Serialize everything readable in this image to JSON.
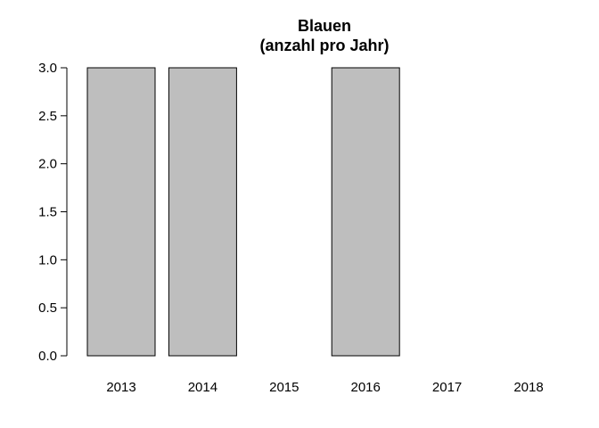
{
  "chart_data": {
    "type": "bar",
    "title_lines": [
      "Blauen",
      "(anzahl pro Jahr)"
    ],
    "xlabel": "",
    "ylabel": "",
    "categories": [
      "2013",
      "2014",
      "2015",
      "2016",
      "2017",
      "2018"
    ],
    "values": [
      3,
      3,
      0,
      3,
      0,
      0
    ],
    "ylim": [
      0,
      3
    ],
    "yticks": [
      0,
      0.5,
      1,
      1.5,
      2,
      2.5,
      3
    ],
    "ytick_labels": [
      "0.0",
      "0.5",
      "1.0",
      "1.5",
      "2.0",
      "2.5",
      "3.0"
    ],
    "bar_color": "#bebebe",
    "bar_edge_color": "#000000",
    "grid": false,
    "legend": "none"
  }
}
